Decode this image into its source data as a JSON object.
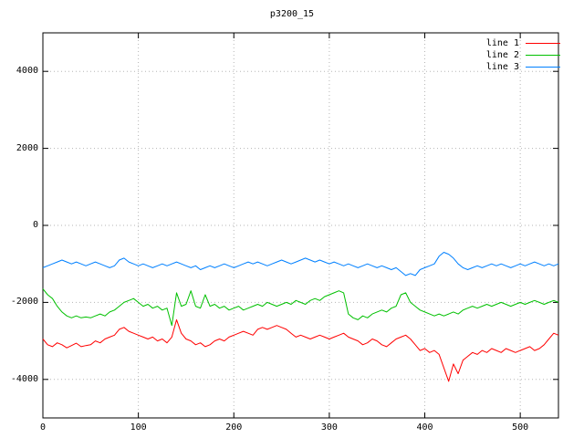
{
  "chart_data": {
    "type": "line",
    "title": "p3200_15",
    "xlabel": "",
    "ylabel": "",
    "xlim": [
      0,
      540
    ],
    "ylim": [
      -5000,
      5000
    ],
    "x_ticks": [
      0,
      100,
      200,
      300,
      400,
      500
    ],
    "y_ticks": [
      -4000,
      -2000,
      0,
      2000,
      4000
    ],
    "grid": true,
    "grid_style": "dotted",
    "grid_color": "#b5b5b5",
    "border_color": "#000000",
    "background": "#ffffff",
    "legend_position": "top-right-inside",
    "x": [
      0,
      5,
      10,
      15,
      20,
      25,
      30,
      35,
      40,
      45,
      50,
      55,
      60,
      65,
      70,
      75,
      80,
      85,
      90,
      95,
      100,
      105,
      110,
      115,
      120,
      125,
      130,
      135,
      140,
      145,
      150,
      155,
      160,
      165,
      170,
      175,
      180,
      185,
      190,
      195,
      200,
      205,
      210,
      215,
      220,
      225,
      230,
      235,
      240,
      245,
      250,
      255,
      260,
      265,
      270,
      275,
      280,
      285,
      290,
      295,
      300,
      305,
      310,
      315,
      320,
      325,
      330,
      335,
      340,
      345,
      350,
      355,
      360,
      365,
      370,
      375,
      380,
      385,
      390,
      395,
      400,
      405,
      410,
      415,
      420,
      425,
      430,
      435,
      440,
      445,
      450,
      455,
      460,
      465,
      470,
      475,
      480,
      485,
      490,
      495,
      500,
      505,
      510,
      515,
      520,
      525,
      530,
      535,
      540
    ],
    "series": [
      {
        "name": "line 1",
        "color": "#ff0000",
        "values": [
          -2950,
          -3100,
          -3150,
          -3050,
          -3100,
          -3180,
          -3120,
          -3060,
          -3150,
          -3120,
          -3100,
          -3000,
          -3050,
          -2950,
          -2900,
          -2850,
          -2700,
          -2650,
          -2750,
          -2800,
          -2850,
          -2900,
          -2950,
          -2900,
          -3000,
          -2950,
          -3050,
          -2900,
          -2450,
          -2800,
          -2950,
          -3000,
          -3100,
          -3050,
          -3150,
          -3100,
          -3000,
          -2950,
          -3000,
          -2900,
          -2850,
          -2800,
          -2750,
          -2800,
          -2850,
          -2700,
          -2650,
          -2700,
          -2650,
          -2600,
          -2650,
          -2700,
          -2800,
          -2900,
          -2850,
          -2900,
          -2950,
          -2900,
          -2850,
          -2900,
          -2950,
          -2900,
          -2850,
          -2800,
          -2900,
          -2950,
          -3000,
          -3100,
          -3050,
          -2950,
          -3000,
          -3100,
          -3150,
          -3050,
          -2950,
          -2900,
          -2850,
          -2950,
          -3100,
          -3250,
          -3200,
          -3300,
          -3250,
          -3350,
          -3700,
          -4050,
          -3600,
          -3850,
          -3500,
          -3400,
          -3300,
          -3350,
          -3250,
          -3300,
          -3200,
          -3250,
          -3300,
          -3200,
          -3250,
          -3300,
          -3250,
          -3200,
          -3150,
          -3250,
          -3200,
          -3100,
          -2950,
          -2800,
          -2850
        ]
      },
      {
        "name": "line 2",
        "color": "#00c000",
        "values": [
          -1650,
          -1800,
          -1900,
          -2100,
          -2250,
          -2350,
          -2400,
          -2350,
          -2400,
          -2380,
          -2400,
          -2350,
          -2300,
          -2350,
          -2250,
          -2200,
          -2100,
          -2000,
          -1950,
          -1900,
          -2000,
          -2100,
          -2050,
          -2150,
          -2100,
          -2200,
          -2150,
          -2600,
          -1750,
          -2100,
          -2050,
          -1700,
          -2100,
          -2150,
          -1800,
          -2100,
          -2050,
          -2150,
          -2100,
          -2200,
          -2150,
          -2100,
          -2200,
          -2150,
          -2100,
          -2050,
          -2100,
          -2000,
          -2050,
          -2100,
          -2050,
          -2000,
          -2050,
          -1950,
          -2000,
          -2050,
          -1950,
          -1900,
          -1950,
          -1850,
          -1800,
          -1750,
          -1700,
          -1750,
          -2300,
          -2400,
          -2450,
          -2350,
          -2400,
          -2300,
          -2250,
          -2200,
          -2250,
          -2150,
          -2100,
          -1800,
          -1750,
          -2000,
          -2100,
          -2200,
          -2250,
          -2300,
          -2350,
          -2300,
          -2350,
          -2300,
          -2250,
          -2300,
          -2200,
          -2150,
          -2100,
          -2150,
          -2100,
          -2050,
          -2100,
          -2050,
          -2000,
          -2050,
          -2100,
          -2050,
          -2000,
          -2050,
          -2000,
          -1950,
          -2000,
          -2050,
          -2000,
          -1950,
          -2000
        ]
      },
      {
        "name": "line 3",
        "color": "#0080ff",
        "values": [
          -1100,
          -1050,
          -1000,
          -950,
          -900,
          -950,
          -1000,
          -950,
          -1000,
          -1050,
          -1000,
          -950,
          -1000,
          -1050,
          -1100,
          -1050,
          -900,
          -850,
          -950,
          -1000,
          -1050,
          -1000,
          -1050,
          -1100,
          -1050,
          -1000,
          -1050,
          -1000,
          -950,
          -1000,
          -1050,
          -1100,
          -1050,
          -1150,
          -1100,
          -1050,
          -1100,
          -1050,
          -1000,
          -1050,
          -1100,
          -1050,
          -1000,
          -950,
          -1000,
          -950,
          -1000,
          -1050,
          -1000,
          -950,
          -900,
          -950,
          -1000,
          -950,
          -900,
          -850,
          -900,
          -950,
          -900,
          -950,
          -1000,
          -950,
          -1000,
          -1050,
          -1000,
          -1050,
          -1100,
          -1050,
          -1000,
          -1050,
          -1100,
          -1050,
          -1100,
          -1150,
          -1100,
          -1200,
          -1300,
          -1250,
          -1300,
          -1150,
          -1100,
          -1050,
          -1000,
          -800,
          -700,
          -750,
          -850,
          -1000,
          -1100,
          -1150,
          -1100,
          -1050,
          -1100,
          -1050,
          -1000,
          -1050,
          -1000,
          -1050,
          -1100,
          -1050,
          -1000,
          -1050,
          -1000,
          -950,
          -1000,
          -1050,
          -1000,
          -1050,
          -1000
        ]
      }
    ]
  }
}
